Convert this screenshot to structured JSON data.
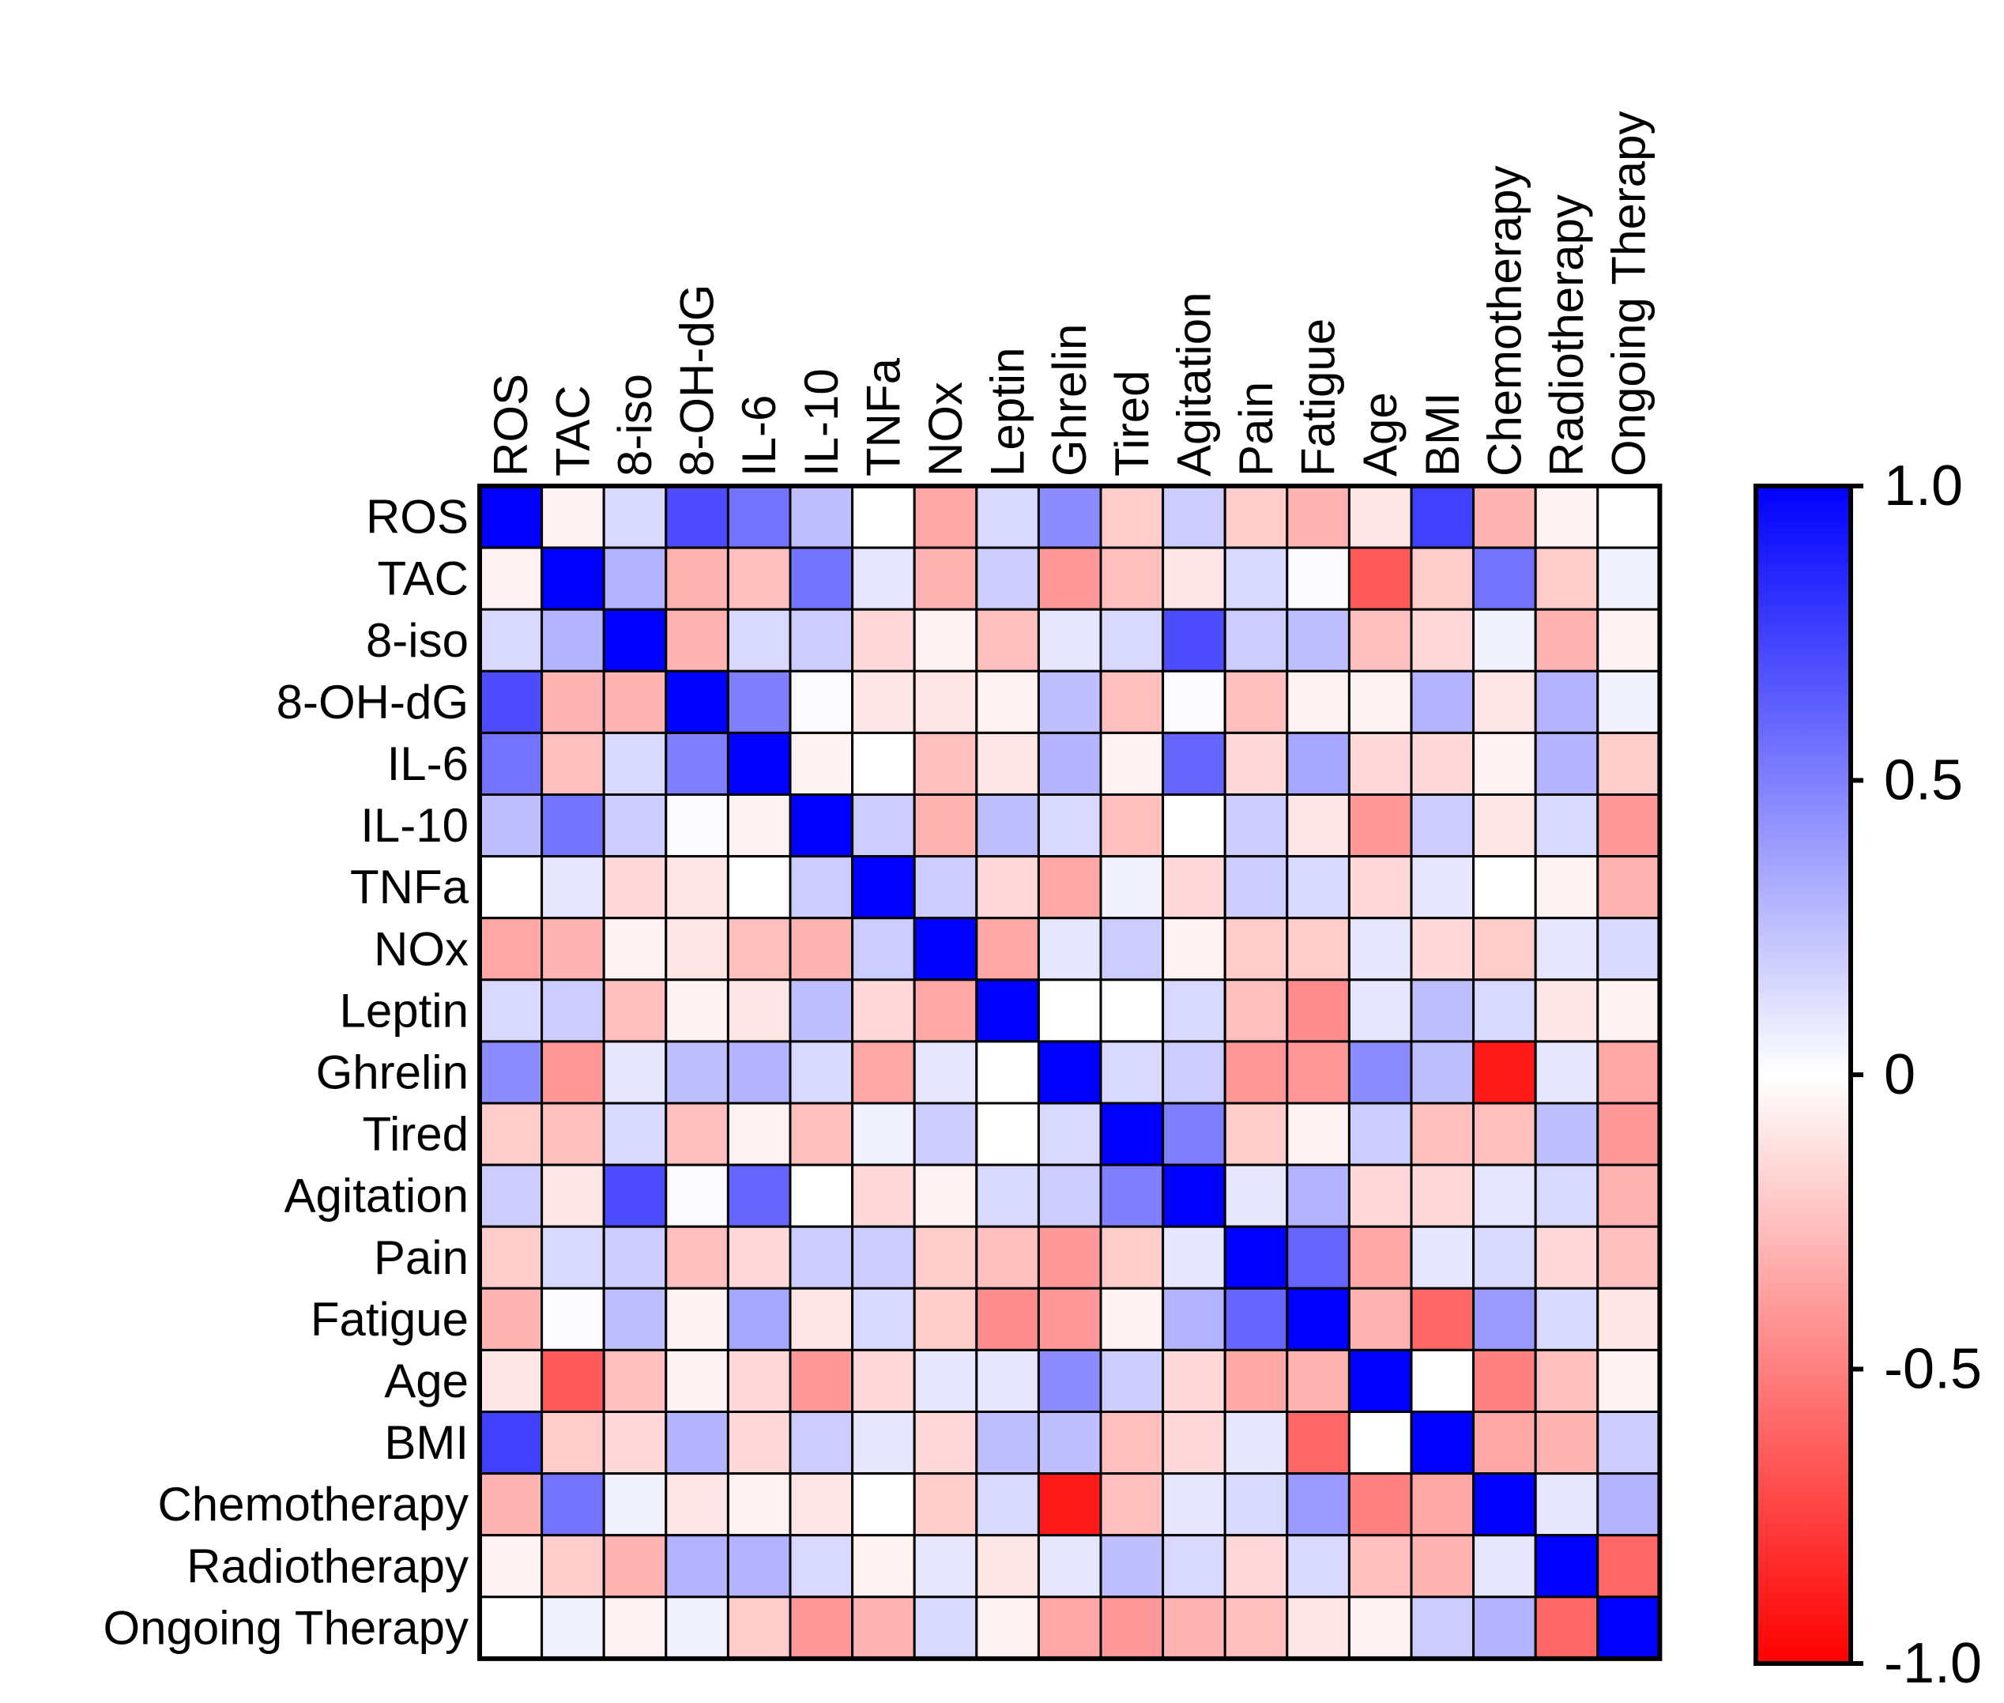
{
  "chart_data": {
    "type": "heatmap",
    "title": "",
    "labels": [
      "ROS",
      "TAC",
      "8-iso",
      "8-OH-dG",
      "IL-6",
      "IL-10",
      "TNFa",
      "NOx",
      "Leptin",
      "Ghrelin",
      "Tired",
      "Agitation",
      "Pain",
      "Fatigue",
      "Age",
      "BMI",
      "Chemotherapy",
      "Radiotherapy",
      "Ongoing Therapy"
    ],
    "matrix": [
      [
        1.0,
        -0.05,
        0.15,
        0.7,
        0.55,
        0.25,
        0.0,
        -0.35,
        0.15,
        0.45,
        -0.2,
        0.2,
        -0.2,
        -0.3,
        -0.1,
        0.75,
        -0.3,
        -0.05,
        0.0
      ],
      [
        -0.05,
        1.0,
        0.3,
        -0.3,
        -0.25,
        0.55,
        0.1,
        -0.3,
        0.2,
        -0.4,
        -0.25,
        -0.1,
        0.15,
        0.02,
        -0.65,
        -0.2,
        0.55,
        -0.2,
        0.05
      ],
      [
        0.15,
        0.3,
        1.0,
        -0.3,
        0.15,
        0.2,
        -0.15,
        -0.05,
        -0.25,
        0.1,
        0.15,
        0.7,
        0.2,
        0.25,
        -0.25,
        -0.15,
        0.05,
        -0.3,
        -0.05
      ],
      [
        0.7,
        -0.3,
        -0.3,
        1.0,
        0.5,
        0.02,
        -0.1,
        -0.1,
        -0.05,
        0.25,
        -0.25,
        0.02,
        -0.25,
        -0.05,
        -0.05,
        0.3,
        -0.1,
        0.3,
        0.05
      ],
      [
        0.55,
        -0.25,
        0.15,
        0.5,
        1.0,
        -0.05,
        0.0,
        -0.25,
        -0.1,
        0.3,
        -0.05,
        0.6,
        -0.15,
        0.35,
        -0.15,
        -0.15,
        -0.05,
        0.3,
        -0.2
      ],
      [
        0.25,
        0.55,
        0.2,
        0.02,
        -0.05,
        1.0,
        0.2,
        -0.3,
        0.25,
        0.15,
        -0.25,
        0.0,
        0.2,
        -0.1,
        -0.4,
        0.2,
        -0.1,
        0.15,
        -0.4
      ],
      [
        0.0,
        0.1,
        -0.15,
        -0.1,
        0.0,
        0.2,
        1.0,
        0.2,
        -0.15,
        -0.35,
        0.05,
        -0.15,
        0.2,
        0.15,
        -0.15,
        0.1,
        0.0,
        -0.05,
        -0.3
      ],
      [
        -0.35,
        -0.3,
        -0.05,
        -0.1,
        -0.25,
        -0.3,
        0.2,
        1.0,
        -0.35,
        0.1,
        0.2,
        -0.05,
        -0.2,
        -0.2,
        0.1,
        -0.15,
        -0.2,
        0.1,
        0.15
      ],
      [
        0.15,
        0.2,
        -0.25,
        -0.05,
        -0.1,
        0.25,
        -0.15,
        -0.35,
        1.0,
        0.0,
        0.0,
        0.15,
        -0.25,
        -0.45,
        0.1,
        0.25,
        0.15,
        -0.1,
        -0.05
      ],
      [
        0.45,
        -0.4,
        0.1,
        0.25,
        0.3,
        0.15,
        -0.35,
        0.1,
        0.0,
        1.0,
        0.15,
        0.2,
        -0.4,
        -0.4,
        0.45,
        0.25,
        -0.9,
        0.1,
        -0.35
      ],
      [
        -0.2,
        -0.25,
        0.15,
        -0.25,
        -0.05,
        -0.25,
        0.05,
        0.2,
        0.0,
        0.15,
        1.0,
        0.5,
        -0.2,
        -0.05,
        0.2,
        -0.25,
        -0.25,
        0.25,
        -0.4
      ],
      [
        0.2,
        -0.1,
        0.7,
        0.02,
        0.6,
        0.0,
        -0.15,
        -0.05,
        0.15,
        0.2,
        0.5,
        1.0,
        0.1,
        0.3,
        -0.15,
        -0.15,
        0.1,
        0.15,
        -0.3
      ],
      [
        -0.2,
        0.15,
        0.2,
        -0.25,
        -0.15,
        0.2,
        0.2,
        -0.2,
        -0.25,
        -0.4,
        -0.2,
        0.1,
        1.0,
        0.6,
        -0.35,
        0.1,
        0.15,
        -0.15,
        -0.25
      ],
      [
        -0.3,
        0.02,
        0.25,
        -0.05,
        0.35,
        -0.1,
        0.15,
        -0.2,
        -0.45,
        -0.4,
        -0.05,
        0.3,
        0.6,
        1.0,
        -0.3,
        -0.6,
        0.4,
        0.15,
        -0.1
      ],
      [
        -0.1,
        -0.65,
        -0.25,
        -0.05,
        -0.15,
        -0.4,
        -0.15,
        0.1,
        0.1,
        0.45,
        0.2,
        -0.15,
        -0.35,
        -0.3,
        1.0,
        0.0,
        -0.5,
        -0.25,
        -0.05
      ],
      [
        0.75,
        -0.2,
        -0.15,
        0.3,
        -0.15,
        0.2,
        0.1,
        -0.15,
        0.25,
        0.25,
        -0.25,
        -0.15,
        0.1,
        -0.6,
        0.0,
        1.0,
        -0.35,
        -0.3,
        0.2
      ],
      [
        -0.3,
        0.55,
        0.05,
        -0.1,
        -0.05,
        -0.1,
        0.0,
        -0.2,
        0.15,
        -0.9,
        -0.25,
        0.1,
        0.15,
        0.4,
        -0.5,
        -0.35,
        1.0,
        0.1,
        0.3
      ],
      [
        -0.05,
        -0.2,
        -0.3,
        0.3,
        0.3,
        0.15,
        -0.05,
        0.1,
        -0.1,
        0.1,
        0.25,
        0.15,
        -0.15,
        0.15,
        -0.25,
        -0.3,
        0.1,
        1.0,
        -0.6
      ],
      [
        0.0,
        0.05,
        -0.05,
        0.05,
        -0.2,
        -0.4,
        -0.3,
        0.15,
        -0.05,
        -0.35,
        -0.4,
        -0.3,
        -0.25,
        -0.1,
        -0.05,
        0.2,
        0.3,
        -0.6,
        1.0
      ]
    ],
    "colorbar": {
      "min": -1.0,
      "max": 1.0,
      "ticks": [
        "1.0",
        "0.5",
        "0",
        "-0.5",
        "-1.0"
      ],
      "tick_values": [
        1.0,
        0.5,
        0,
        -0.5,
        -1.0
      ],
      "colors": {
        "low": "#ff0000",
        "mid": "#ffffff",
        "high": "#0000ff"
      }
    }
  }
}
